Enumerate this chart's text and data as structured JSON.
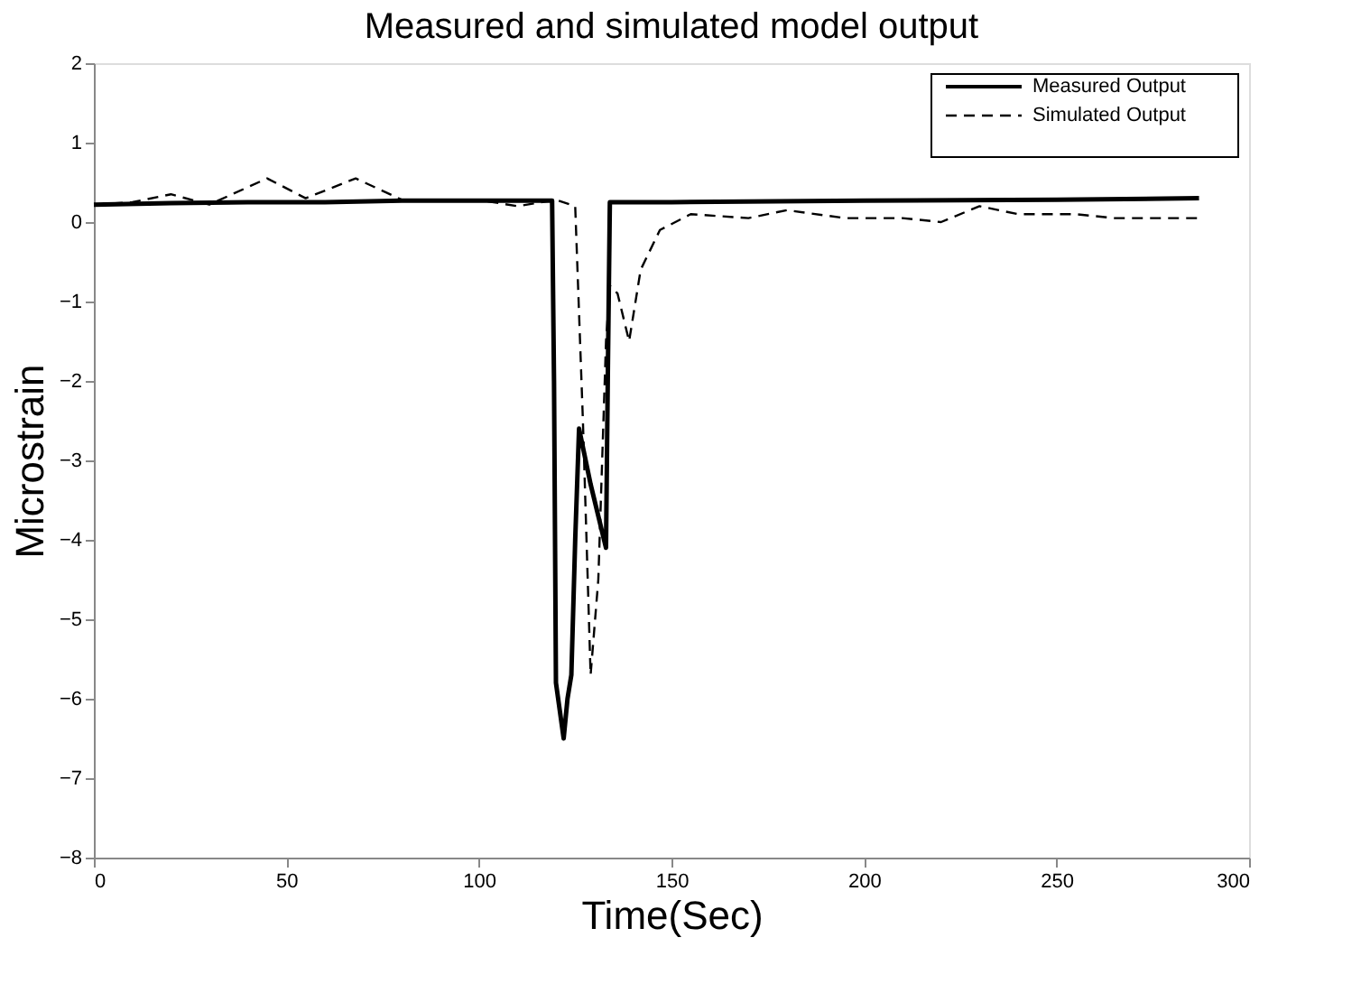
{
  "chart_data": {
    "type": "line",
    "title": "Measured and simulated model output",
    "xlabel": "Time(Sec)",
    "ylabel": "Microstrain",
    "xlim": [
      0,
      300
    ],
    "xticks": [
      0,
      50,
      100,
      150,
      200,
      250,
      300
    ],
    "ylim": [
      -8,
      2
    ],
    "yticks": [
      -8,
      -7,
      -6,
      -5,
      -4,
      -3,
      -2,
      -1,
      0,
      1,
      2
    ],
    "grid": false,
    "legend": "top right",
    "series": [
      {
        "name": "Measured Output",
        "color": "#000000",
        "line_style": "solid",
        "x": [
          0,
          20,
          40,
          60,
          80,
          100,
          119,
          119.5,
          120,
          122,
          123,
          124,
          125,
          126,
          129,
          133,
          133.5,
          134,
          150,
          200,
          250,
          287
        ],
        "values": [
          0.22,
          0.24,
          0.25,
          0.25,
          0.27,
          0.27,
          0.27,
          -2.0,
          -5.8,
          -6.5,
          -6.0,
          -5.7,
          -4.0,
          -2.6,
          -3.3,
          -4.1,
          -1.8,
          0.25,
          0.25,
          0.27,
          0.28,
          0.3
        ]
      },
      {
        "name": "Simulated Output",
        "color": "#000000",
        "line_style": "dashed",
        "x": [
          0,
          10,
          20,
          30,
          45,
          55,
          68,
          80,
          100,
          110,
          120,
          125,
          127,
          129,
          131,
          133,
          134,
          136,
          139,
          142,
          147,
          155,
          170,
          180,
          195,
          210,
          220,
          230,
          240,
          255,
          265,
          287
        ],
        "values": [
          0.22,
          0.25,
          0.35,
          0.22,
          0.55,
          0.3,
          0.55,
          0.28,
          0.28,
          0.2,
          0.28,
          0.2,
          -2.5,
          -5.7,
          -4.5,
          -1.5,
          -0.8,
          -0.9,
          -1.5,
          -0.6,
          -0.1,
          0.1,
          0.05,
          0.15,
          0.05,
          0.05,
          0.0,
          0.2,
          0.1,
          0.1,
          0.05,
          0.05
        ]
      }
    ]
  }
}
